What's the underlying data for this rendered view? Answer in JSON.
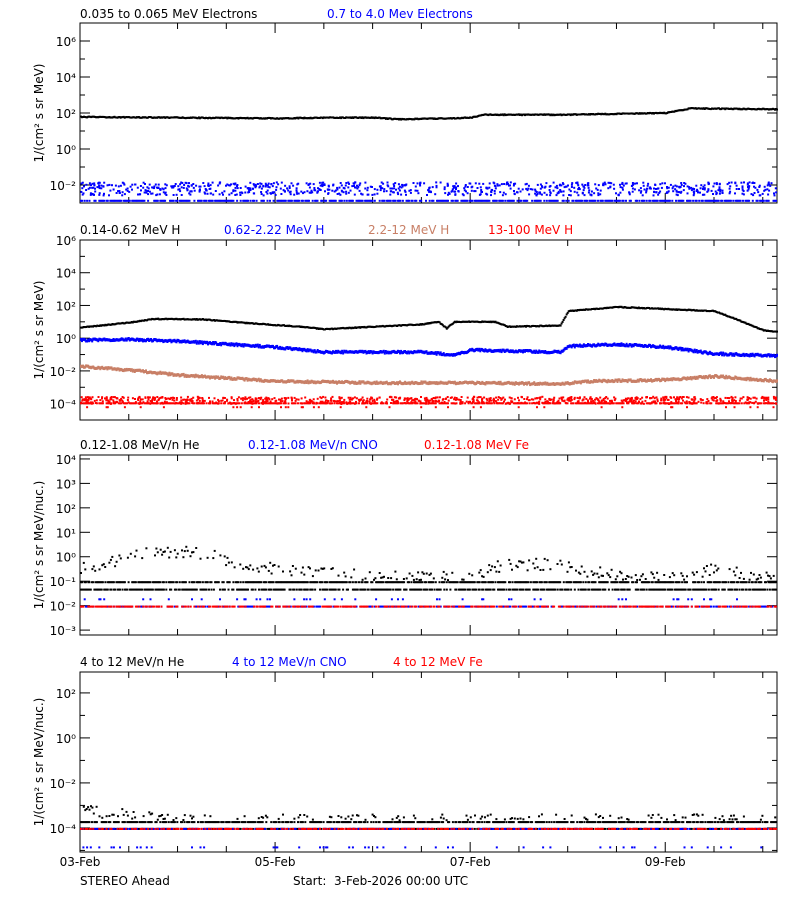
{
  "x_axis": {
    "start": "2026-02-03T00:00",
    "end": "2026-02-10T03:30",
    "minor_tick_hours": 12,
    "tick_labels": [
      {
        "date": "2026-02-03T00:00",
        "label": "03-Feb"
      },
      {
        "date": "2026-02-05T00:00",
        "label": "05-Feb"
      },
      {
        "date": "2026-02-07T00:00",
        "label": "07-Feb"
      },
      {
        "date": "2026-02-09T00:00",
        "label": "09-Feb"
      }
    ]
  },
  "footer": {
    "spacecraft": "STEREO Ahead",
    "start_label": "Start:  3-Feb-2026 00:00 UTC"
  },
  "chart_data": [
    {
      "type": "scatter",
      "ylabel": "1/(cm² s sr MeV)",
      "yscale": "log",
      "ylim": [
        0.001,
        10000000
      ],
      "yticks": [
        {
          "value": 0.01,
          "label": "10⁻²"
        },
        {
          "value": 1,
          "label": "10⁰"
        },
        {
          "value": 100,
          "label": "10²"
        },
        {
          "value": 10000,
          "label": "10⁴"
        },
        {
          "value": 1000000,
          "label": "10⁶"
        }
      ],
      "series": [
        {
          "name": "0.035 to 0.065 MeV Electrons",
          "color": "#000000",
          "kind": "line",
          "points": [
            [
              "2026-02-03T00:00",
              60
            ],
            [
              "2026-02-04T00:00",
              55
            ],
            [
              "2026-02-05T00:00",
              50
            ],
            [
              "2026-02-05T12:00",
              55
            ],
            [
              "2026-02-06T00:00",
              55
            ],
            [
              "2026-02-06T06:00",
              45
            ],
            [
              "2026-02-06T18:00",
              50
            ],
            [
              "2026-02-07T00:00",
              55
            ],
            [
              "2026-02-07T03:00",
              80
            ],
            [
              "2026-02-08T00:00",
              80
            ],
            [
              "2026-02-08T12:00",
              90
            ],
            [
              "2026-02-09T00:00",
              100
            ],
            [
              "2026-02-09T06:00",
              180
            ],
            [
              "2026-02-10T03:30",
              160
            ]
          ]
        },
        {
          "name": "0.7 to 4.0 Mev Electrons",
          "color": "#0000ff",
          "kind": "scatter",
          "range": [
            0.003,
            0.016
          ],
          "floor_levels": [
            0.0015
          ]
        }
      ]
    },
    {
      "type": "scatter",
      "ylabel": "1/(cm² s sr MeV)",
      "yscale": "log",
      "ylim": [
        1e-05,
        1000000
      ],
      "yticks": [
        {
          "value": 0.0001,
          "label": "10⁻⁴"
        },
        {
          "value": 0.01,
          "label": "10⁻²"
        },
        {
          "value": 1,
          "label": "10⁰"
        },
        {
          "value": 100,
          "label": "10²"
        },
        {
          "value": 10000,
          "label": "10⁴"
        },
        {
          "value": 1000000,
          "label": "10⁶"
        }
      ],
      "series": [
        {
          "name": "0.14-0.62 MeV H",
          "color": "#000000",
          "kind": "line",
          "points": [
            [
              "2026-02-03T00:00",
              4.5
            ],
            [
              "2026-02-03T12:00",
              9
            ],
            [
              "2026-02-03T18:00",
              15
            ],
            [
              "2026-02-04T06:00",
              14
            ],
            [
              "2026-02-04T18:00",
              8
            ],
            [
              "2026-02-05T06:00",
              5
            ],
            [
              "2026-02-05T12:00",
              3.5
            ],
            [
              "2026-02-06T00:00",
              5
            ],
            [
              "2026-02-06T12:00",
              7
            ],
            [
              "2026-02-06T16:00",
              10
            ],
            [
              "2026-02-06T18:00",
              4
            ],
            [
              "2026-02-06T20:00",
              10
            ],
            [
              "2026-02-07T06:00",
              10
            ],
            [
              "2026-02-07T09:00",
              5
            ],
            [
              "2026-02-07T22:00",
              6
            ],
            [
              "2026-02-08T00:00",
              45
            ],
            [
              "2026-02-08T06:00",
              60
            ],
            [
              "2026-02-08T12:00",
              80
            ],
            [
              "2026-02-09T00:00",
              60
            ],
            [
              "2026-02-09T12:00",
              45
            ],
            [
              "2026-02-09T18:00",
              12
            ],
            [
              "2026-02-10T00:00",
              3
            ],
            [
              "2026-02-10T03:30",
              2.5
            ]
          ]
        },
        {
          "name": "0.62-2.22 MeV H",
          "color": "#0000ff",
          "kind": "line",
          "points": [
            [
              "2026-02-03T00:00",
              0.8
            ],
            [
              "2026-02-03T12:00",
              0.9
            ],
            [
              "2026-02-04T00:00",
              0.7
            ],
            [
              "2026-02-05T00:00",
              0.3
            ],
            [
              "2026-02-05T12:00",
              0.15
            ],
            [
              "2026-02-06T12:00",
              0.15
            ],
            [
              "2026-02-06T20:00",
              0.1
            ],
            [
              "2026-02-07T00:00",
              0.2
            ],
            [
              "2026-02-07T22:00",
              0.15
            ],
            [
              "2026-02-08T00:00",
              0.35
            ],
            [
              "2026-02-08T12:00",
              0.45
            ],
            [
              "2026-02-09T00:00",
              0.3
            ],
            [
              "2026-02-09T12:00",
              0.12
            ],
            [
              "2026-02-10T03:30",
              0.09
            ]
          ]
        },
        {
          "name": "2.2-12 MeV H",
          "color": "#c87f66",
          "kind": "line",
          "points": [
            [
              "2026-02-03T00:00",
              0.02
            ],
            [
              "2026-02-03T12:00",
              0.012
            ],
            [
              "2026-02-04T00:00",
              0.006
            ],
            [
              "2026-02-05T00:00",
              0.0025
            ],
            [
              "2026-02-06T00:00",
              0.002
            ],
            [
              "2026-02-07T00:00",
              0.002
            ],
            [
              "2026-02-07T22:00",
              0.0017
            ],
            [
              "2026-02-08T06:00",
              0.0025
            ],
            [
              "2026-02-09T00:00",
              0.003
            ],
            [
              "2026-02-09T12:00",
              0.005
            ],
            [
              "2026-02-10T03:30",
              0.0025
            ]
          ]
        },
        {
          "name": "13-100 MeV H",
          "color": "#ff0000",
          "kind": "scatter",
          "range": [
            0.00011,
            0.0003
          ],
          "floor_levels": [
            0.00012,
            7e-05
          ]
        }
      ]
    },
    {
      "type": "scatter",
      "ylabel": "1/(cm² s sr MeV/nuc.)",
      "yscale": "log",
      "ylim": [
        0.00063,
        14500
      ],
      "yticks": [
        {
          "value": 0.001,
          "label": "10⁻³"
        },
        {
          "value": 0.01,
          "label": "10⁻²"
        },
        {
          "value": 0.1,
          "label": "10⁻¹"
        },
        {
          "value": 1,
          "label": "10⁰"
        },
        {
          "value": 10,
          "label": "10¹"
        },
        {
          "value": 100,
          "label": "10²"
        },
        {
          "value": 1000,
          "label": "10³"
        },
        {
          "value": 10000,
          "label": "10⁴"
        }
      ],
      "series": [
        {
          "name": "0.12-1.08 MeV/n He",
          "color": "#000000",
          "kind": "noisy",
          "points": [
            [
              "2026-02-03T00:00",
              0.3
            ],
            [
              "2026-02-03T12:00",
              0.8
            ],
            [
              "2026-02-03T18:00",
              1.6
            ],
            [
              "2026-02-04T06:00",
              1.1
            ],
            [
              "2026-02-04T18:00",
              0.4
            ],
            [
              "2026-02-05T06:00",
              0.2
            ],
            [
              "2026-02-06T00:00",
              0.15
            ],
            [
              "2026-02-07T00:00",
              0.12
            ],
            [
              "2026-02-07T06:00",
              0.35
            ],
            [
              "2026-02-07T18:00",
              0.45
            ],
            [
              "2026-02-08T06:00",
              0.2
            ],
            [
              "2026-02-09T00:00",
              0.1
            ],
            [
              "2026-02-09T12:00",
              0.3
            ],
            [
              "2026-02-10T03:30",
              0.1
            ]
          ],
          "floor_levels": [
            0.1,
            0.05
          ]
        },
        {
          "name": "0.12-1.08 MeV/n CNO",
          "color": "#0000ff",
          "kind": "floor",
          "floor_levels": [
            0.01,
            0.02
          ]
        },
        {
          "name": "0.12-1.08 MeV Fe",
          "color": "#ff0000",
          "kind": "floor",
          "floor_levels": [
            0.01
          ]
        }
      ]
    },
    {
      "type": "scatter",
      "ylabel": "1/(cm² s sr MeV/nuc.)",
      "yscale": "log",
      "ylim": [
        8.5e-06,
        850
      ],
      "yticks": [
        {
          "value": 0.0001,
          "label": "10⁻⁴"
        },
        {
          "value": 0.01,
          "label": "10⁻²"
        },
        {
          "value": 1,
          "label": "10⁰"
        },
        {
          "value": 100,
          "label": "10²"
        }
      ],
      "series": [
        {
          "name": "4 to 12 MeV/n He",
          "color": "#000000",
          "kind": "noisy",
          "points": [
            [
              "2026-02-03T00:00",
              0.0006
            ],
            [
              "2026-02-03T06:00",
              0.0004
            ],
            [
              "2026-02-03T18:00",
              0.00025
            ],
            [
              "2026-02-04T06:00",
              0.0002
            ],
            [
              "2026-02-10T03:30",
              0.0002
            ]
          ],
          "floor_levels": [
            0.0002,
            0.0001
          ]
        },
        {
          "name": "4 to 12 MeV/n CNO",
          "color": "#0000ff",
          "kind": "floor",
          "floor_levels": [
            0.0001,
            1.5e-05
          ]
        },
        {
          "name": "4 to 12 MeV Fe",
          "color": "#ff0000",
          "kind": "floor",
          "floor_levels": [
            0.0001
          ]
        }
      ]
    }
  ]
}
